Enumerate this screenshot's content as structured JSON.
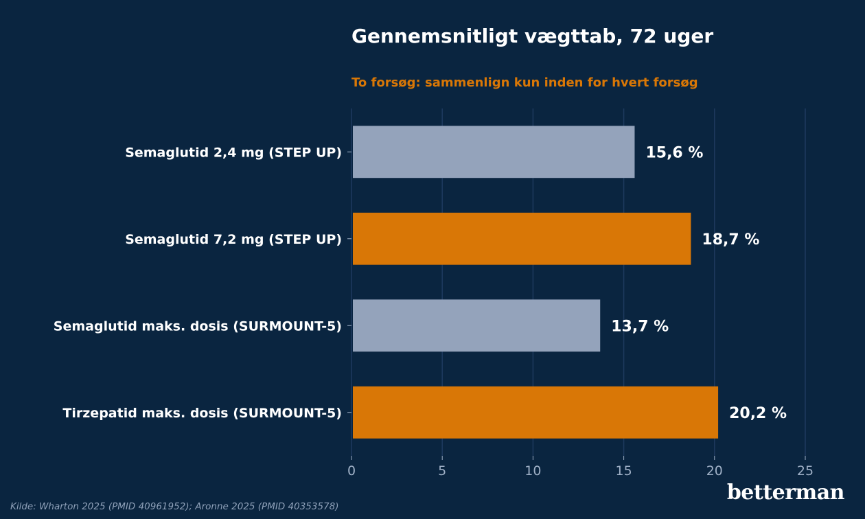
{
  "chart_data": {
    "type": "bar",
    "orientation": "horizontal",
    "title": "Gennemsnitligt vægttab, 72 uger",
    "subtitle": "To forsøg: sammenlign kun inden for hvert forsøg",
    "categories": [
      "Semaglutid 2,4 mg (STEP UP)",
      "Semaglutid 7,2 mg (STEP UP)",
      "Semaglutid maks. dosis (SURMOUNT-5)",
      "Tirzepatid maks. dosis (SURMOUNT-5)"
    ],
    "values": [
      15.6,
      18.7,
      13.7,
      20.2
    ],
    "value_labels": [
      "15,6 %",
      "18,7 %",
      "13,7 %",
      "20,2 %"
    ],
    "bar_colors": [
      "#94a3bb",
      "#d97706",
      "#94a3bb",
      "#d97706"
    ],
    "xlim": [
      0,
      25
    ],
    "xticks": [
      0,
      5,
      10,
      15,
      20,
      25
    ],
    "xtick_labels": [
      "0",
      "5",
      "10",
      "15",
      "20",
      "25"
    ],
    "grid": "vertical",
    "xlabel": "",
    "ylabel": ""
  },
  "footer": {
    "source": "Kilde: Wharton 2025 (PMID 40961952); Aronne 2025 (PMID 40353578)",
    "logo": "betterman"
  },
  "colors": {
    "background": "#0a2540",
    "grid": "#1e3a5f",
    "title": "#ffffff",
    "subtitle": "#d97706",
    "tick_label": "#9fb0c6",
    "category_label": "#ffffff",
    "value_label": "#ffffff"
  }
}
